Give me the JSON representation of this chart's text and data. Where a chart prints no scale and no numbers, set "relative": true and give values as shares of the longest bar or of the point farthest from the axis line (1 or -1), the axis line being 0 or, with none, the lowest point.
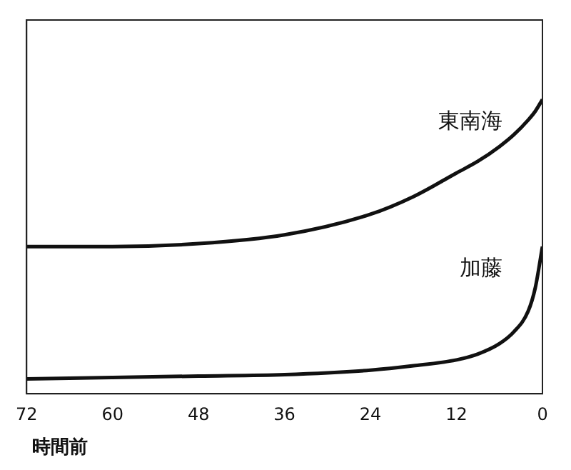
{
  "chart_data": {
    "type": "line",
    "relative": true,
    "xlabel": "時間前",
    "x": [
      72,
      60,
      48,
      36,
      24,
      18,
      12,
      9,
      6,
      4,
      2,
      1,
      0
    ],
    "xlim": [
      72,
      0
    ],
    "xticks": [
      72,
      60,
      48,
      36,
      24,
      12,
      0
    ],
    "marker": "none",
    "grid": false,
    "legend": false,
    "line_style": "solid",
    "series": [
      {
        "name": "東南海",
        "color": "#111111",
        "values": [
          0.5,
          0.5,
          0.51,
          0.54,
          0.61,
          0.67,
          0.75,
          0.79,
          0.84,
          0.88,
          0.93,
          0.96,
          1.0
        ]
      },
      {
        "name": "加藤",
        "color": "#111111",
        "values": [
          0.05,
          0.055,
          0.06,
          0.065,
          0.08,
          0.095,
          0.115,
          0.135,
          0.17,
          0.21,
          0.28,
          0.36,
          0.5
        ]
      }
    ]
  }
}
